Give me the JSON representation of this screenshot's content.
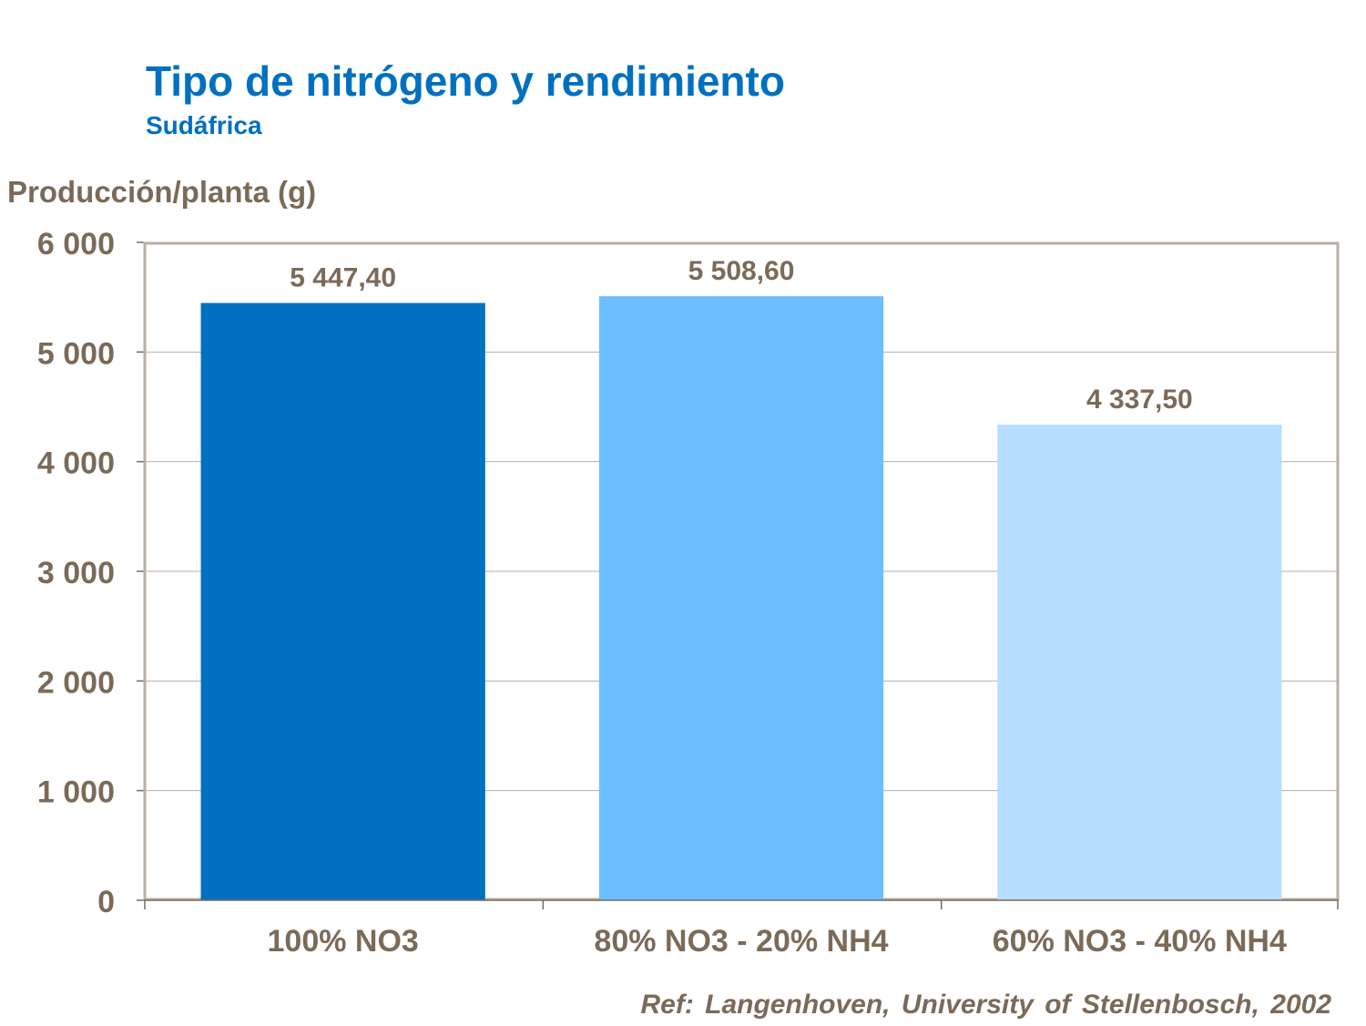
{
  "chart_data": {
    "type": "bar",
    "title": "Tipo de nitrógeno y rendimiento",
    "subtitle": "Sudáfrica",
    "ylabel": "Producción/planta (g)",
    "xlabel": "",
    "categories": [
      "100% NO3",
      "80% NO3 - 20% NH4",
      "60% NO3 - 40% NH4"
    ],
    "values": [
      5447.4,
      5508.6,
      4337.5
    ],
    "data_labels": [
      "5 447,40",
      "5 508,60",
      "4 337,50"
    ],
    "bar_colors": [
      "#0070C0",
      "#6BBEFF",
      "#B8DEFF"
    ],
    "ylim": [
      0,
      6000
    ],
    "yticks": [
      0,
      1000,
      2000,
      3000,
      4000,
      5000,
      6000
    ],
    "ytick_labels": [
      "0",
      "1 000",
      "2 000",
      "3 000",
      "4 000",
      "5 000",
      "6 000"
    ],
    "grid": true,
    "text_color": "#7B6A58",
    "title_color": "#0070C0",
    "reference": "Ref: Langenhoven, University of Stellenbosch, 2002"
  }
}
